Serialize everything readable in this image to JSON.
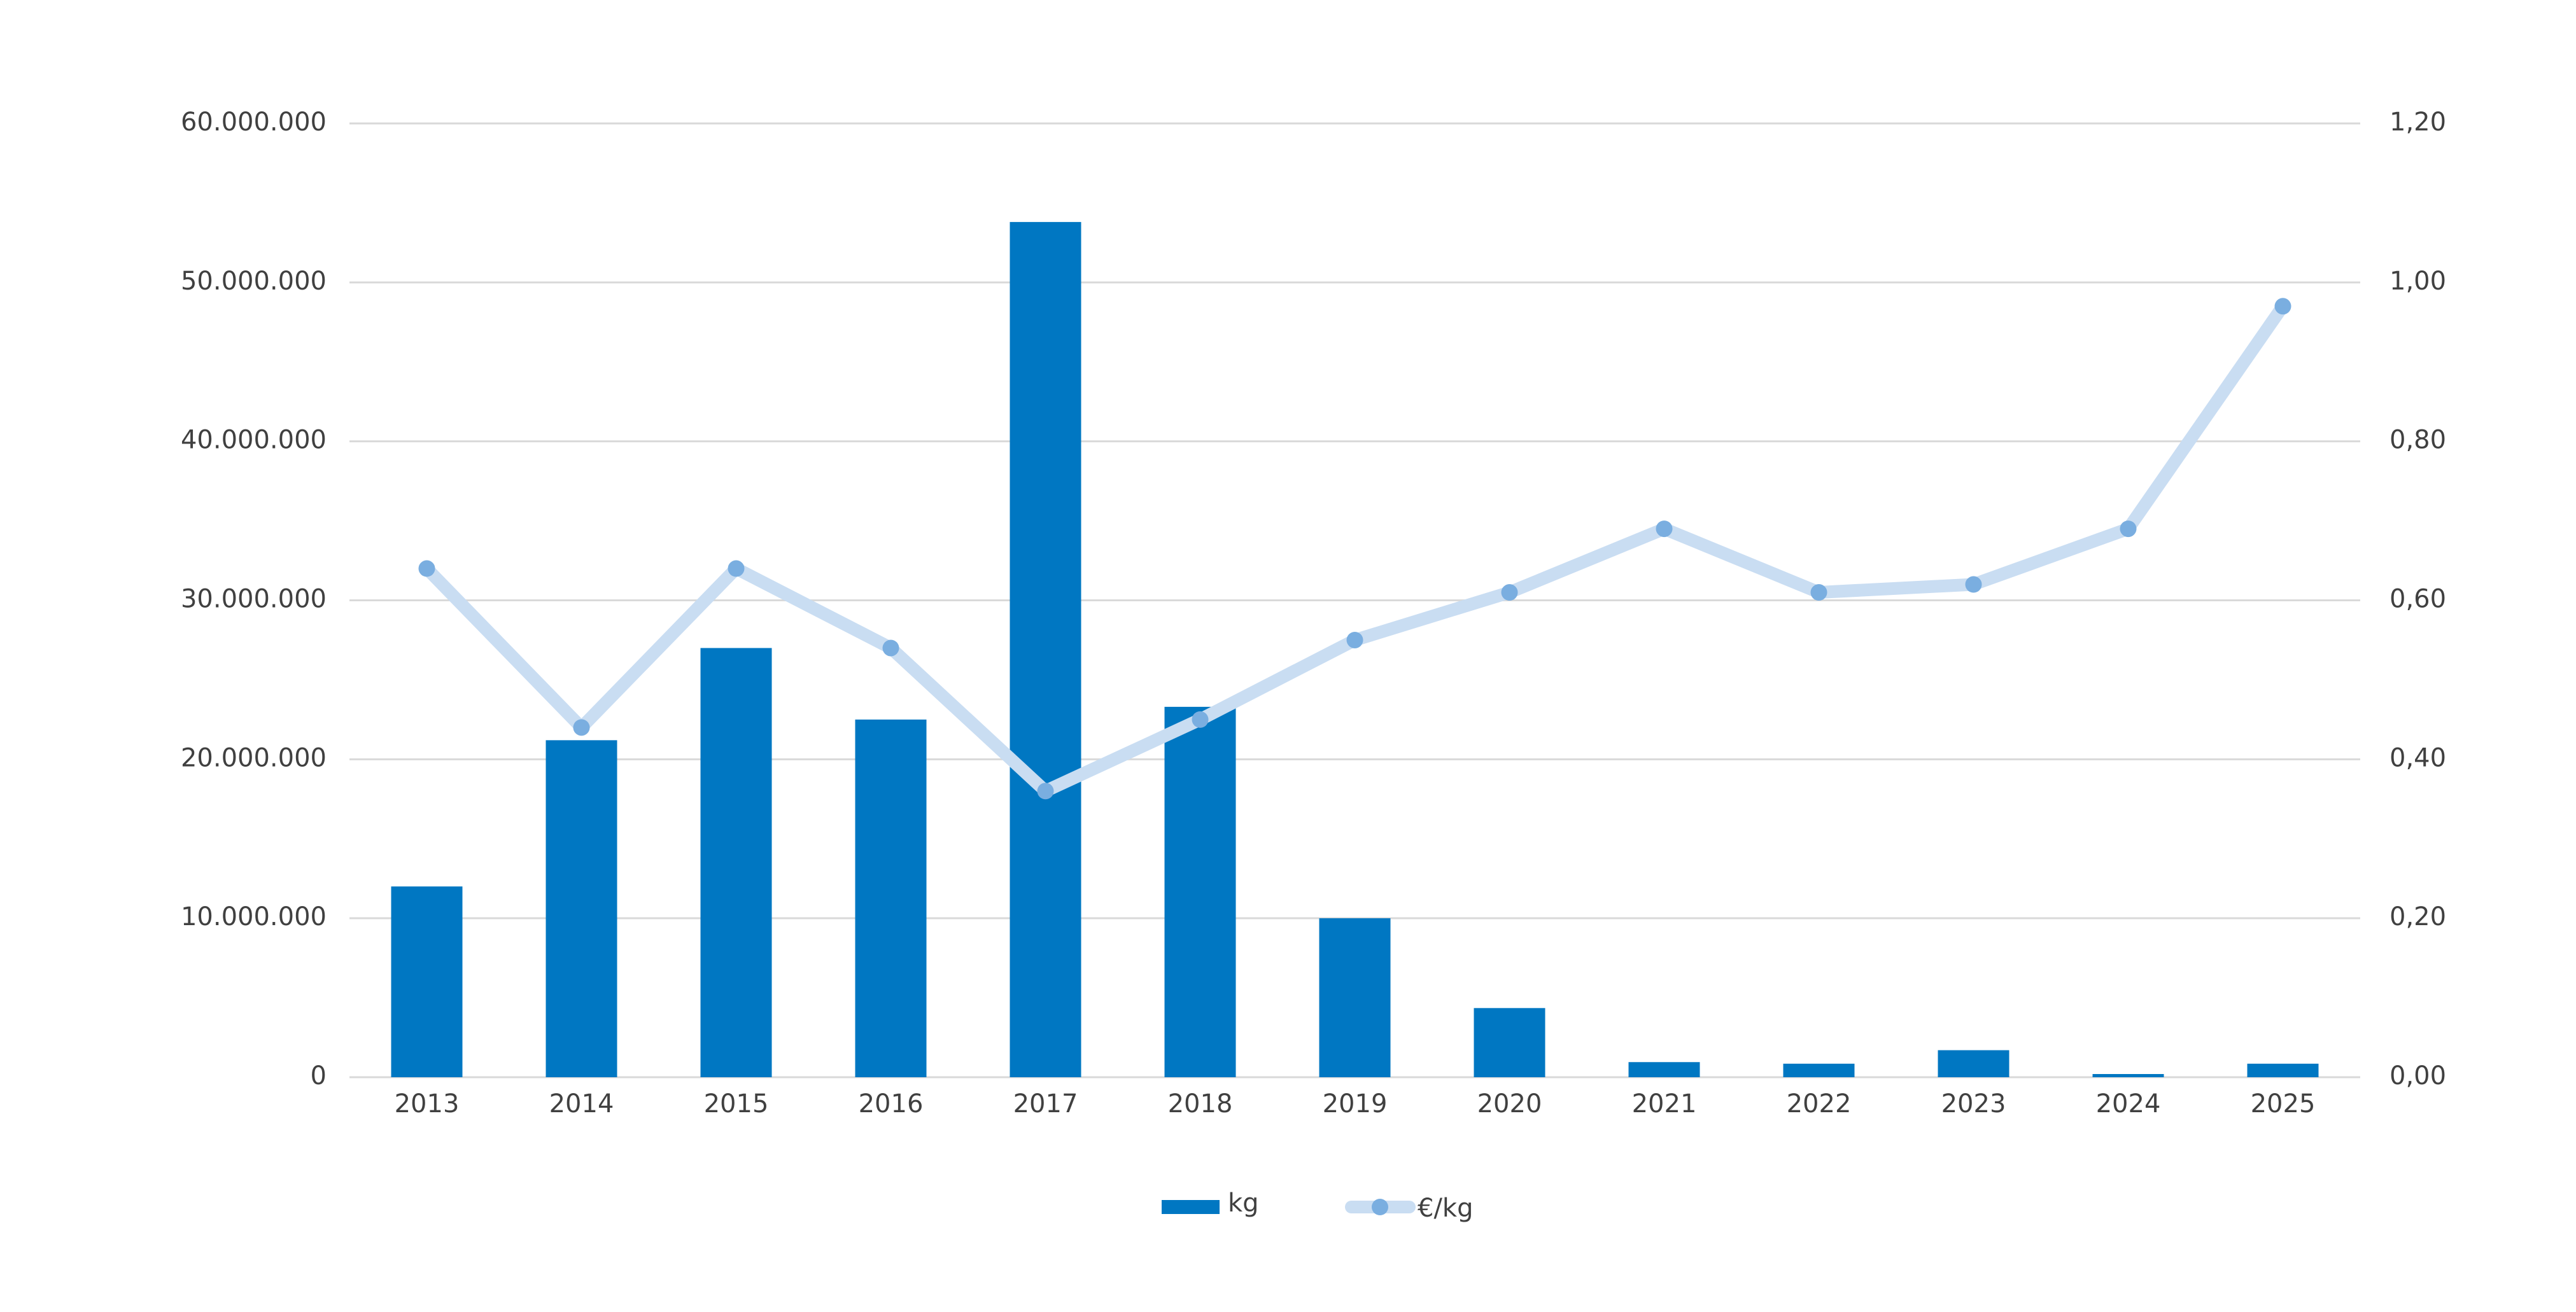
{
  "chart_data": {
    "type": "bar-line",
    "categories": [
      "2013",
      "2014",
      "2015",
      "2016",
      "2017",
      "2018",
      "2019",
      "2020",
      "2021",
      "2022",
      "2023",
      "2024",
      "2025"
    ],
    "series": [
      {
        "name": "kg",
        "type": "bar",
        "color": "#0077c2",
        "axis": "y",
        "values": [
          12000000,
          21200000,
          27000000,
          22500000,
          53800000,
          23300000,
          10000000,
          4350000,
          950000,
          850000,
          1700000,
          200000,
          850000
        ]
      },
      {
        "name": "€/kg",
        "type": "line",
        "color": "#c9ddf2",
        "marker_color": "#7aaee0",
        "axis": "y2",
        "values": [
          0.64,
          0.44,
          0.64,
          0.54,
          0.36,
          0.45,
          0.55,
          0.61,
          0.69,
          0.61,
          0.62,
          0.69,
          0.97
        ]
      }
    ],
    "ylim": [
      0,
      60000000
    ],
    "yticks": [
      0,
      {
        "value": 10000000,
        "label": "10.000.000"
      },
      {
        "value": 20000000,
        "label": "20.000.000"
      },
      {
        "value": 30000000,
        "label": "30.000.000"
      },
      {
        "value": 40000000,
        "label": "40.000.000"
      },
      {
        "value": 50000000,
        "label": "50.000.000"
      },
      {
        "value": 60000000,
        "label": "60.000.000"
      }
    ],
    "y2lim": [
      0,
      1.2
    ],
    "y2ticks": [
      {
        "value": 0,
        "label": "0,00"
      },
      {
        "value": 0.2,
        "label": "0,20"
      },
      {
        "value": 0.4,
        "label": "0,40"
      },
      {
        "value": 0.6,
        "label": "0,60"
      },
      {
        "value": 0.8,
        "label": "0,80"
      },
      {
        "value": 1.0,
        "label": "1,00"
      },
      {
        "value": 1.2,
        "label": "1,20"
      }
    ],
    "grid": true,
    "legend": "bottom"
  }
}
